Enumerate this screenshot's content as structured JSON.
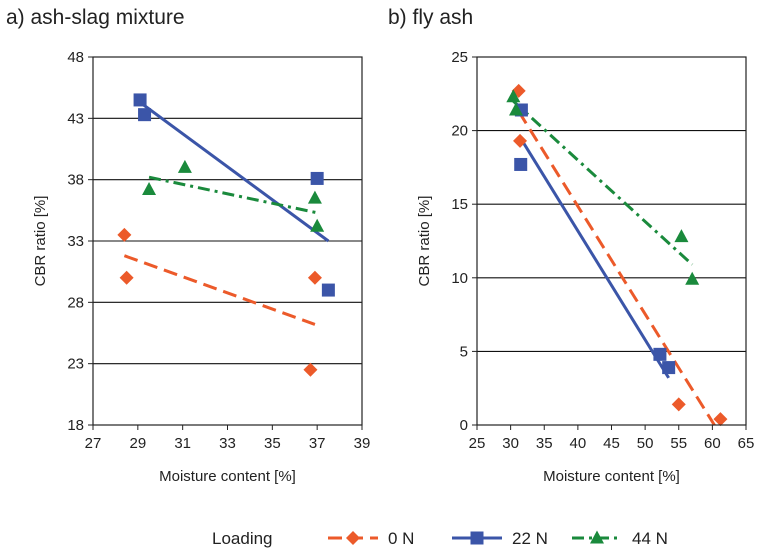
{
  "colors": {
    "s0": "#ec5a2a",
    "s22": "#3b55a8",
    "s44": "#1a8a3c",
    "axis": "#222222",
    "grid": "#111111"
  },
  "legend": {
    "title": "Loading",
    "entries": [
      "0 N",
      "22 N",
      "44 N"
    ]
  },
  "chart_data": [
    {
      "type": "scatter",
      "title": "a) ash-slag mixture",
      "xlabel": "Moisture content [%]",
      "ylabel": "CBR ratio [%]",
      "xlim": [
        27,
        39
      ],
      "ylim": [
        18,
        48
      ],
      "xticks": [
        27,
        29,
        31,
        33,
        35,
        37,
        39
      ],
      "yticks": [
        18,
        23,
        28,
        33,
        38,
        43,
        48
      ],
      "grid": "horizontal",
      "series": [
        {
          "name": "0 N",
          "marker": "diamond",
          "points": [
            [
              28.4,
              33.5
            ],
            [
              28.5,
              30.0
            ],
            [
              36.9,
              30.0
            ],
            [
              36.7,
              22.5
            ]
          ],
          "trend": [
            [
              28.4,
              31.8
            ],
            [
              36.9,
              26.2
            ]
          ],
          "dash": "dash"
        },
        {
          "name": "22 N",
          "marker": "square",
          "points": [
            [
              29.1,
              44.5
            ],
            [
              29.3,
              43.3
            ],
            [
              37.0,
              38.1
            ],
            [
              37.5,
              29.0
            ]
          ],
          "trend": [
            [
              29.1,
              44.3
            ],
            [
              37.5,
              33.0
            ]
          ],
          "dash": "solid"
        },
        {
          "name": "44 N",
          "marker": "triangle",
          "points": [
            [
              29.5,
              37.2
            ],
            [
              31.1,
              39.0
            ],
            [
              36.9,
              36.5
            ],
            [
              37.0,
              34.2
            ]
          ],
          "trend": [
            [
              29.5,
              38.2
            ],
            [
              37.0,
              35.3
            ]
          ],
          "dash": "dashdot"
        }
      ]
    },
    {
      "type": "scatter",
      "title": "b) fly ash",
      "xlabel": "Moisture content [%]",
      "ylabel": "CBR ratio [%]",
      "xlim": [
        25,
        65
      ],
      "ylim": [
        0,
        25
      ],
      "xticks": [
        25,
        30,
        35,
        40,
        45,
        50,
        55,
        60,
        65
      ],
      "yticks": [
        0,
        5,
        10,
        15,
        20,
        25
      ],
      "grid": "horizontal",
      "series": [
        {
          "name": "0 N",
          "marker": "diamond",
          "points": [
            [
              31.2,
              22.7
            ],
            [
              31.4,
              19.3
            ],
            [
              55.0,
              1.4
            ],
            [
              61.2,
              0.4
            ]
          ],
          "trend": [
            [
              31.2,
              21.3
            ],
            [
              60.3,
              0.0
            ]
          ],
          "dash": "dash"
        },
        {
          "name": "22 N",
          "marker": "square",
          "points": [
            [
              31.5,
              17.7
            ],
            [
              31.6,
              21.4
            ],
            [
              52.2,
              4.8
            ],
            [
              53.5,
              3.9
            ]
          ],
          "trend": [
            [
              31.6,
              19.4
            ],
            [
              53.5,
              3.2
            ]
          ],
          "dash": "solid"
        },
        {
          "name": "44 N",
          "marker": "triangle",
          "points": [
            [
              30.4,
              22.3
            ],
            [
              30.8,
              21.4
            ],
            [
              55.4,
              12.8
            ],
            [
              57.0,
              9.9
            ]
          ],
          "trend": [
            [
              30.4,
              22.0
            ],
            [
              57.0,
              10.9
            ]
          ],
          "dash": "dashdot"
        }
      ]
    }
  ]
}
